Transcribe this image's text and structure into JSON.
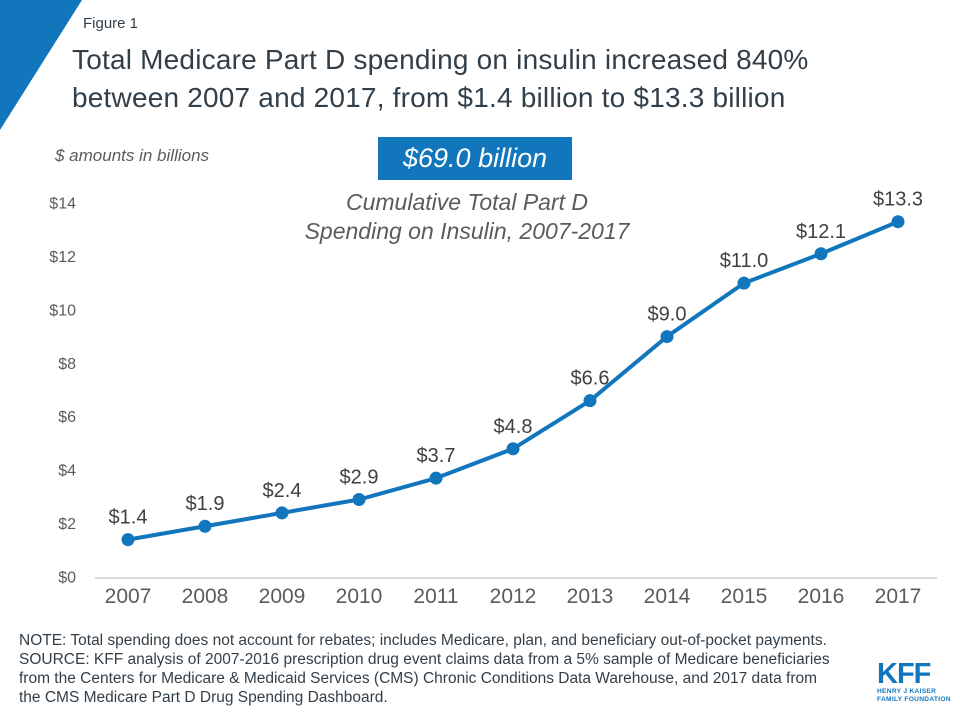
{
  "colors": {
    "accent": "#1276bd",
    "title_color": "#333f48",
    "muted_text": "#595c5e",
    "data_label": "#404040",
    "axis_line": "#d9d9d9"
  },
  "header": {
    "figure_label": "Figure 1",
    "title_lines": [
      "Total Medicare Part D spending on insulin increased 840%",
      "between 2007 and 2017, from $1.4 billion to $13.3 billion"
    ]
  },
  "callout": {
    "value": "$69.0 billion",
    "subtitle_lines": [
      "Cumulative Total Part D",
      "Spending on Insulin, 2007-2017"
    ]
  },
  "chart_data": {
    "type": "line",
    "title": "Total Medicare Part D spending on insulin, 2007-2017",
    "ylabel_note": "$ amounts in billions",
    "x": [
      "2007",
      "2008",
      "2009",
      "2010",
      "2011",
      "2012",
      "2013",
      "2014",
      "2015",
      "2016",
      "2017"
    ],
    "values": [
      1.4,
      1.9,
      2.4,
      2.9,
      3.7,
      4.8,
      6.6,
      9.0,
      11.0,
      12.1,
      13.3
    ],
    "point_labels": [
      "$1.4",
      "$1.9",
      "$2.4",
      "$2.9",
      "$3.7",
      "$4.8",
      "$6.6",
      "$9.0",
      "$11.0",
      "$12.1",
      "$13.3"
    ],
    "y_ticks": [
      {
        "label": "$0",
        "value": 0
      },
      {
        "label": "$2",
        "value": 2
      },
      {
        "label": "$4",
        "value": 4
      },
      {
        "label": "$6",
        "value": 6
      },
      {
        "label": "$8",
        "value": 8
      },
      {
        "label": "$10",
        "value": 10
      },
      {
        "label": "$12",
        "value": 12
      },
      {
        "label": "$14",
        "value": 14
      }
    ],
    "ylim": [
      0,
      14
    ],
    "grid": false,
    "legend": "none",
    "line_color": "#1276bd",
    "marker": "circle"
  },
  "footer": {
    "lines": [
      "NOTE: Total spending does not account for rebates; includes Medicare, plan, and beneficiary out-of-pocket payments.",
      "SOURCE: KFF analysis of 2007-2016 prescription drug event claims data from a 5% sample of Medicare beneficiaries",
      "from the Centers for Medicare & Medicaid Services (CMS) Chronic Conditions Data Warehouse, and 2017 data from",
      "the CMS Medicare Part D Drug Spending Dashboard."
    ]
  },
  "logo": {
    "name": "KFF",
    "subtitle_lines": [
      "HENRY J KAISER",
      "FAMILY FOUNDATION"
    ]
  }
}
